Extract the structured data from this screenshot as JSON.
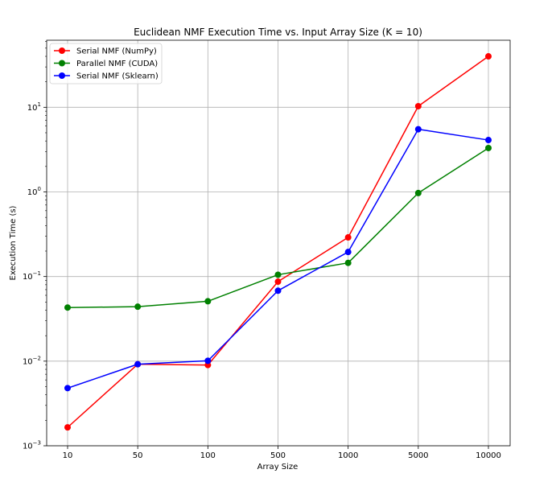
{
  "chart_data": {
    "type": "line",
    "title": "Euclidean NMF Execution Time vs. Input Array Size (K = 10)",
    "xlabel": "Array Size",
    "ylabel": "Execution Time (s)",
    "y_scale": "log",
    "ylim": [
      0.001,
      62
    ],
    "grid": true,
    "legend_position": "top-left",
    "categories": [
      "10",
      "50",
      "100",
      "500",
      "1000",
      "5000",
      "10000"
    ],
    "y_ticks": [
      {
        "value": 0.001,
        "base": "10",
        "exp": "−3"
      },
      {
        "value": 0.01,
        "base": "10",
        "exp": "−2"
      },
      {
        "value": 0.1,
        "base": "10",
        "exp": "−1"
      },
      {
        "value": 1,
        "base": "10",
        "exp": "0"
      },
      {
        "value": 10,
        "base": "10",
        "exp": "1"
      }
    ],
    "series": [
      {
        "name": "Serial NMF (NumPy)",
        "color": "#ff0000",
        "values": [
          0.00165,
          0.0092,
          0.009,
          0.087,
          0.29,
          10.3,
          40.0
        ]
      },
      {
        "name": "Parallel NMF (CUDA)",
        "color": "#008000",
        "values": [
          0.043,
          0.044,
          0.051,
          0.105,
          0.145,
          0.97,
          3.3
        ]
      },
      {
        "name": "Serial NMF (Sklearn)",
        "color": "#0000ff",
        "values": [
          0.0048,
          0.0092,
          0.0101,
          0.068,
          0.195,
          5.5,
          4.1
        ]
      }
    ]
  }
}
